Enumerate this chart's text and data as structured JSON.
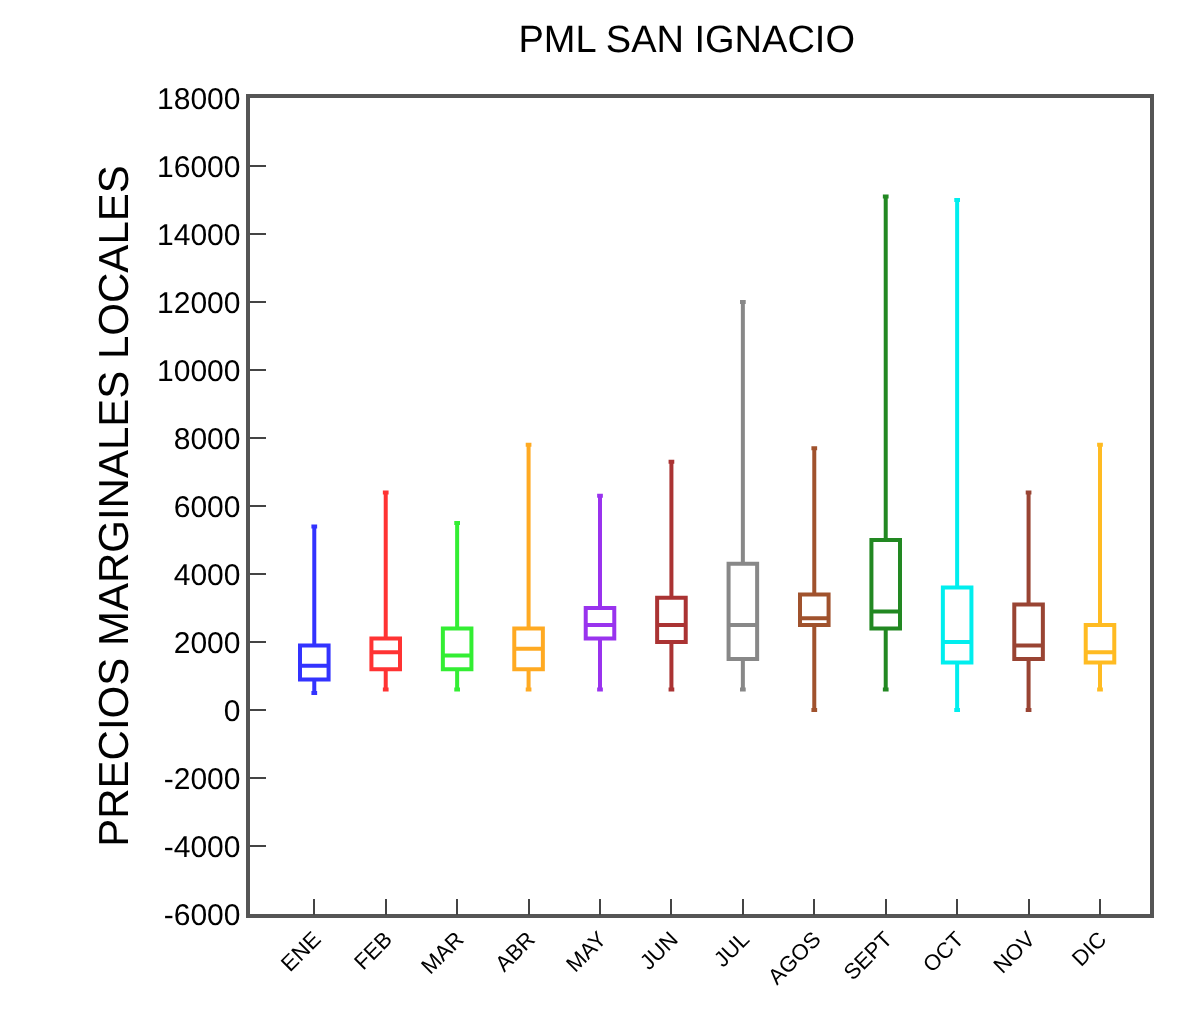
{
  "chart_data": {
    "type": "box",
    "title": "PML SAN IGNACIO",
    "ylabel": "PRECIOS MARGINALES LOCALES",
    "categories": [
      "ENE",
      "FEB",
      "MAR",
      "ABR",
      "MAY",
      "JUN",
      "JUL",
      "AGOS",
      "SEPT",
      "OCT",
      "NOV",
      "DIC"
    ],
    "colors": [
      "#3333ff",
      "#ff3333",
      "#33ee33",
      "#ffaa22",
      "#9933ee",
      "#aa3333",
      "#888888",
      "#a0522d",
      "#228822",
      "#00eeee",
      "#994433",
      "#ffbb22"
    ],
    "boxes": [
      {
        "low": 500,
        "q1": 900,
        "median": 1300,
        "q3": 1900,
        "high": 5400
      },
      {
        "low": 600,
        "q1": 1200,
        "median": 1700,
        "q3": 2100,
        "high": 6400
      },
      {
        "low": 600,
        "q1": 1200,
        "median": 1600,
        "q3": 2400,
        "high": 5500
      },
      {
        "low": 600,
        "q1": 1200,
        "median": 1800,
        "q3": 2400,
        "high": 7800
      },
      {
        "low": 600,
        "q1": 2100,
        "median": 2500,
        "q3": 3000,
        "high": 6300
      },
      {
        "low": 600,
        "q1": 2000,
        "median": 2500,
        "q3": 3300,
        "high": 7300
      },
      {
        "low": 600,
        "q1": 1500,
        "median": 2500,
        "q3": 4300,
        "high": 12000
      },
      {
        "low": 0,
        "q1": 2500,
        "median": 2700,
        "q3": 3400,
        "high": 7700
      },
      {
        "low": 600,
        "q1": 2400,
        "median": 2900,
        "q3": 5000,
        "high": 15100
      },
      {
        "low": 0,
        "q1": 1400,
        "median": 2000,
        "q3": 3600,
        "high": 15000
      },
      {
        "low": 0,
        "q1": 1500,
        "median": 1900,
        "q3": 3100,
        "high": 6400
      },
      {
        "low": 600,
        "q1": 1400,
        "median": 1700,
        "q3": 2500,
        "high": 7800
      }
    ],
    "ylim": [
      -6000,
      18000
    ],
    "yticks": [
      -6000,
      -4000,
      -2000,
      0,
      2000,
      4000,
      6000,
      8000,
      10000,
      12000,
      14000,
      16000,
      18000
    ]
  }
}
